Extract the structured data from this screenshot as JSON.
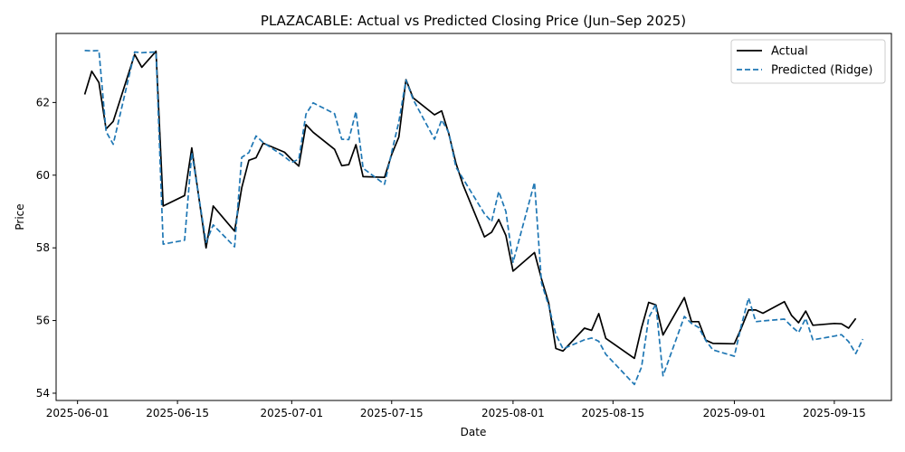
{
  "chart_data": {
    "type": "line",
    "title": "PLAZACABLE: Actual vs Predicted Closing Price (Jun–Sep 2025)",
    "xlabel": "Date",
    "ylabel": "Price",
    "xlim": [
      "2025-05-29",
      "2025-09-23"
    ],
    "ylim": [
      53.8,
      63.9
    ],
    "x_ticks": [
      "2025-06-01",
      "2025-06-15",
      "2025-07-01",
      "2025-07-15",
      "2025-08-01",
      "2025-08-15",
      "2025-09-01",
      "2025-09-15"
    ],
    "y_ticks": [
      54,
      56,
      58,
      60,
      62
    ],
    "legend": {
      "position": "upper-right"
    },
    "grid": false,
    "series": [
      {
        "name": "Actual",
        "color": "#000000",
        "style": "solid",
        "points": [
          [
            "2025-06-02",
            62.22
          ],
          [
            "2025-06-03",
            62.86
          ],
          [
            "2025-06-04",
            62.55
          ],
          [
            "2025-06-05",
            61.27
          ],
          [
            "2025-06-06",
            61.48
          ],
          [
            "2025-06-09",
            63.32
          ],
          [
            "2025-06-10",
            62.97
          ],
          [
            "2025-06-12",
            63.41
          ],
          [
            "2025-06-13",
            59.15
          ],
          [
            "2025-06-16",
            59.44
          ],
          [
            "2025-06-17",
            60.75
          ],
          [
            "2025-06-19",
            58.0
          ],
          [
            "2025-06-20",
            59.15
          ],
          [
            "2025-06-23",
            58.46
          ],
          [
            "2025-06-24",
            59.65
          ],
          [
            "2025-06-25",
            60.41
          ],
          [
            "2025-06-26",
            60.48
          ],
          [
            "2025-06-27",
            60.88
          ],
          [
            "2025-06-30",
            60.63
          ],
          [
            "2025-07-01",
            60.43
          ],
          [
            "2025-07-02",
            60.25
          ],
          [
            "2025-07-03",
            61.39
          ],
          [
            "2025-07-04",
            61.18
          ],
          [
            "2025-07-07",
            60.71
          ],
          [
            "2025-07-08",
            60.26
          ],
          [
            "2025-07-09",
            60.29
          ],
          [
            "2025-07-10",
            60.84
          ],
          [
            "2025-07-11",
            59.96
          ],
          [
            "2025-07-14",
            59.94
          ],
          [
            "2025-07-15",
            60.57
          ],
          [
            "2025-07-16",
            61.05
          ],
          [
            "2025-07-17",
            62.63
          ],
          [
            "2025-07-18",
            62.13
          ],
          [
            "2025-07-21",
            61.66
          ],
          [
            "2025-07-22",
            61.77
          ],
          [
            "2025-07-23",
            61.14
          ],
          [
            "2025-07-24",
            60.33
          ],
          [
            "2025-07-25",
            59.73
          ],
          [
            "2025-07-28",
            58.3
          ],
          [
            "2025-07-29",
            58.43
          ],
          [
            "2025-07-30",
            58.78
          ],
          [
            "2025-07-31",
            58.34
          ],
          [
            "2025-08-01",
            57.36
          ],
          [
            "2025-08-04",
            57.87
          ],
          [
            "2025-08-05",
            57.14
          ],
          [
            "2025-08-06",
            56.48
          ],
          [
            "2025-08-07",
            55.23
          ],
          [
            "2025-08-08",
            55.16
          ],
          [
            "2025-08-11",
            55.79
          ],
          [
            "2025-08-12",
            55.73
          ],
          [
            "2025-08-13",
            56.19
          ],
          [
            "2025-08-14",
            55.51
          ],
          [
            "2025-08-18",
            54.96
          ],
          [
            "2025-08-19",
            55.8
          ],
          [
            "2025-08-20",
            56.5
          ],
          [
            "2025-08-21",
            56.43
          ],
          [
            "2025-08-22",
            55.6
          ],
          [
            "2025-08-25",
            56.63
          ],
          [
            "2025-08-26",
            55.97
          ],
          [
            "2025-08-27",
            55.97
          ],
          [
            "2025-08-28",
            55.46
          ],
          [
            "2025-08-29",
            55.37
          ],
          [
            "2025-09-01",
            55.36
          ],
          [
            "2025-09-02",
            55.8
          ],
          [
            "2025-09-03",
            56.29
          ],
          [
            "2025-09-04",
            56.29
          ],
          [
            "2025-09-05",
            56.2
          ],
          [
            "2025-09-08",
            56.52
          ],
          [
            "2025-09-09",
            56.14
          ],
          [
            "2025-09-10",
            55.94
          ],
          [
            "2025-09-11",
            56.26
          ],
          [
            "2025-09-12",
            55.87
          ],
          [
            "2025-09-15",
            55.92
          ],
          [
            "2025-09-16",
            55.91
          ],
          [
            "2025-09-17",
            55.79
          ],
          [
            "2025-09-18",
            56.06
          ]
        ]
      },
      {
        "name": "Predicted (Ridge)",
        "color": "#1f77b4",
        "style": "dashed",
        "points": [
          [
            "2025-06-02",
            63.43
          ],
          [
            "2025-06-03",
            63.42
          ],
          [
            "2025-06-04",
            63.43
          ],
          [
            "2025-06-05",
            61.2
          ],
          [
            "2025-06-06",
            60.85
          ],
          [
            "2025-06-09",
            63.39
          ],
          [
            "2025-06-10",
            63.37
          ],
          [
            "2025-06-12",
            63.39
          ],
          [
            "2025-06-13",
            58.1
          ],
          [
            "2025-06-16",
            58.21
          ],
          [
            "2025-06-17",
            60.62
          ],
          [
            "2025-06-19",
            58.15
          ],
          [
            "2025-06-20",
            58.63
          ],
          [
            "2025-06-23",
            58.03
          ],
          [
            "2025-06-24",
            60.49
          ],
          [
            "2025-06-25",
            60.62
          ],
          [
            "2025-06-26",
            61.08
          ],
          [
            "2025-06-27",
            60.9
          ],
          [
            "2025-06-30",
            60.51
          ],
          [
            "2025-07-01",
            60.35
          ],
          [
            "2025-07-02",
            60.44
          ],
          [
            "2025-07-03",
            61.68
          ],
          [
            "2025-07-04",
            61.99
          ],
          [
            "2025-07-07",
            61.69
          ],
          [
            "2025-07-08",
            60.99
          ],
          [
            "2025-07-09",
            60.98
          ],
          [
            "2025-07-10",
            61.75
          ],
          [
            "2025-07-11",
            60.19
          ],
          [
            "2025-07-14",
            59.75
          ],
          [
            "2025-07-15",
            60.63
          ],
          [
            "2025-07-16",
            61.47
          ],
          [
            "2025-07-17",
            62.62
          ],
          [
            "2025-07-18",
            62.09
          ],
          [
            "2025-07-21",
            60.99
          ],
          [
            "2025-07-22",
            61.52
          ],
          [
            "2025-07-23",
            61.17
          ],
          [
            "2025-07-24",
            60.22
          ],
          [
            "2025-07-25",
            59.9
          ],
          [
            "2025-07-28",
            58.94
          ],
          [
            "2025-07-29",
            58.72
          ],
          [
            "2025-07-30",
            59.55
          ],
          [
            "2025-07-31",
            59.0
          ],
          [
            "2025-08-01",
            57.6
          ],
          [
            "2025-08-04",
            59.8
          ],
          [
            "2025-08-05",
            57.03
          ],
          [
            "2025-08-06",
            56.41
          ],
          [
            "2025-08-07",
            55.62
          ],
          [
            "2025-08-08",
            55.22
          ],
          [
            "2025-08-11",
            55.47
          ],
          [
            "2025-08-12",
            55.52
          ],
          [
            "2025-08-13",
            55.43
          ],
          [
            "2025-08-14",
            55.07
          ],
          [
            "2025-08-18",
            54.24
          ],
          [
            "2025-08-19",
            54.72
          ],
          [
            "2025-08-20",
            56.08
          ],
          [
            "2025-08-21",
            56.45
          ],
          [
            "2025-08-22",
            54.48
          ],
          [
            "2025-08-25",
            56.11
          ],
          [
            "2025-08-26",
            55.92
          ],
          [
            "2025-08-27",
            55.81
          ],
          [
            "2025-08-28",
            55.45
          ],
          [
            "2025-08-29",
            55.19
          ],
          [
            "2025-09-01",
            55.02
          ],
          [
            "2025-09-02",
            55.88
          ],
          [
            "2025-09-03",
            56.62
          ],
          [
            "2025-09-04",
            55.97
          ],
          [
            "2025-09-05",
            55.99
          ],
          [
            "2025-09-08",
            56.04
          ],
          [
            "2025-09-09",
            55.84
          ],
          [
            "2025-09-10",
            55.67
          ],
          [
            "2025-09-11",
            56.06
          ],
          [
            "2025-09-12",
            55.47
          ],
          [
            "2025-09-15",
            55.57
          ],
          [
            "2025-09-16",
            55.61
          ],
          [
            "2025-09-17",
            55.42
          ],
          [
            "2025-09-18",
            55.09
          ],
          [
            "2025-09-19",
            55.49
          ]
        ]
      }
    ]
  }
}
